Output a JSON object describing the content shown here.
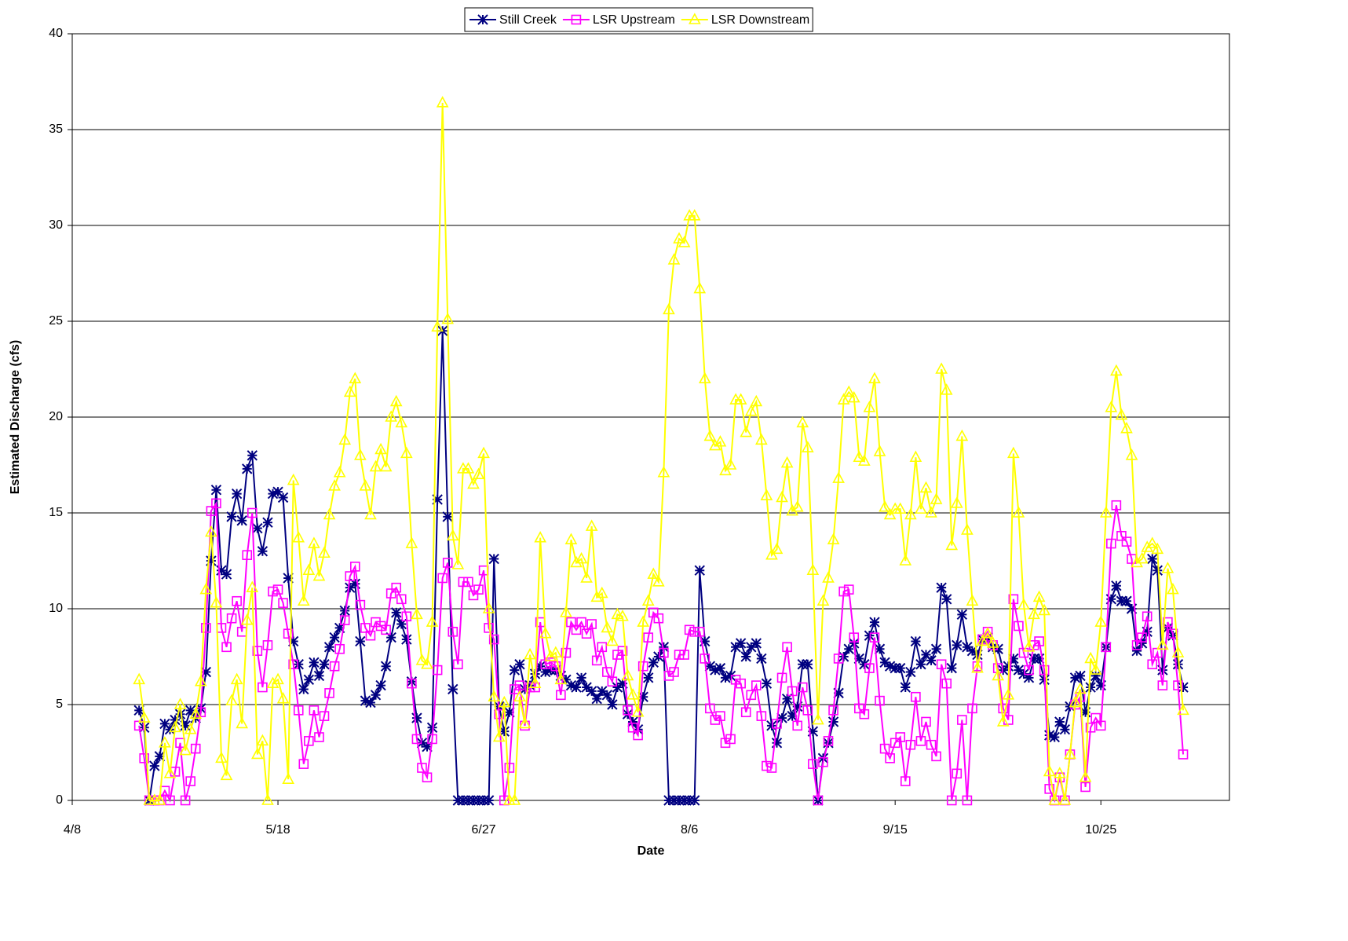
{
  "chart_data": {
    "type": "line",
    "x_label": "Date",
    "y_label": "Estimated Discharge (cfs)",
    "xlim": [
      "4/8",
      "11/19"
    ],
    "xticks": [
      "4/8",
      "5/18",
      "6/27",
      "8/6",
      "9/15",
      "10/25"
    ],
    "ylim": [
      0,
      40
    ],
    "yticks": [
      0,
      5,
      10,
      15,
      20,
      25,
      30,
      35,
      40
    ],
    "grid": true,
    "legend": "top",
    "x": [
      "4/21",
      "4/22",
      "4/23",
      "4/24",
      "4/25",
      "4/26",
      "4/27",
      "4/28",
      "4/29",
      "4/30",
      "5/1",
      "5/2",
      "5/3",
      "5/4",
      "5/5",
      "5/6",
      "5/7",
      "5/8",
      "5/9",
      "5/10",
      "5/11",
      "5/12",
      "5/13",
      "5/14",
      "5/15",
      "5/16",
      "5/17",
      "5/18",
      "5/19",
      "5/20",
      "5/21",
      "5/22",
      "5/23",
      "5/24",
      "5/25",
      "5/26",
      "5/27",
      "5/28",
      "5/29",
      "5/30",
      "5/31",
      "6/1",
      "6/2",
      "6/3",
      "6/4",
      "6/5",
      "6/6",
      "6/7",
      "6/8",
      "6/9",
      "6/10",
      "6/11",
      "6/12",
      "6/13",
      "6/14",
      "6/15",
      "6/16",
      "6/17",
      "6/18",
      "6/19",
      "6/20",
      "6/21",
      "6/22",
      "6/23",
      "6/24",
      "6/25",
      "6/26",
      "6/27",
      "6/28",
      "6/29",
      "6/30",
      "7/1",
      "7/2",
      "7/3",
      "7/4",
      "7/5",
      "7/6",
      "7/7",
      "7/8",
      "7/9",
      "7/10",
      "7/11",
      "7/12",
      "7/13",
      "7/14",
      "7/15",
      "7/16",
      "7/17",
      "7/18",
      "7/19",
      "7/20",
      "7/21",
      "7/22",
      "7/23",
      "7/24",
      "7/25",
      "7/26",
      "7/27",
      "7/28",
      "7/29",
      "7/30",
      "7/31",
      "8/1",
      "8/2",
      "8/3",
      "8/4",
      "8/5",
      "8/6",
      "8/7",
      "8/8",
      "8/9",
      "8/10",
      "8/11",
      "8/12",
      "8/13",
      "8/14",
      "8/15",
      "8/16",
      "8/17",
      "8/18",
      "8/19",
      "8/20",
      "8/21",
      "8/22",
      "8/23",
      "8/24",
      "8/25",
      "8/26",
      "8/27",
      "8/28",
      "8/29",
      "8/30",
      "8/31",
      "9/1",
      "9/2",
      "9/3",
      "9/4",
      "9/5",
      "9/6",
      "9/7",
      "9/8",
      "9/9",
      "9/10",
      "9/11",
      "9/12",
      "9/13",
      "9/14",
      "9/15",
      "9/16",
      "9/17",
      "9/18",
      "9/19",
      "9/20",
      "9/21",
      "9/22",
      "9/23",
      "9/24",
      "9/25",
      "9/26",
      "9/27",
      "9/28",
      "9/29",
      "9/30",
      "10/1",
      "10/2",
      "10/3",
      "10/4",
      "10/5",
      "10/6",
      "10/7",
      "10/8",
      "10/9",
      "10/10",
      "10/11",
      "10/12",
      "10/13",
      "10/14",
      "10/15",
      "10/16",
      "10/17",
      "10/18",
      "10/19",
      "10/20",
      "10/21",
      "10/22",
      "10/23",
      "10/24",
      "10/25",
      "10/26",
      "10/27",
      "10/28",
      "10/29",
      "10/30",
      "10/31",
      "11/1",
      "11/2",
      "11/3",
      "11/4",
      "11/5",
      "11/6",
      "11/7",
      "11/8",
      "11/9",
      "11/10"
    ],
    "series": [
      {
        "name": "Still Creek",
        "color": "#000080",
        "marker": "asterisk",
        "values": [
          4.7,
          3.8,
          0,
          1.8,
          2.3,
          4.0,
          3.7,
          4.2,
          4.5,
          3.9,
          4.7,
          4.3,
          4.8,
          6.7,
          12.5,
          16.2,
          12.0,
          11.8,
          14.8,
          16.0,
          14.6,
          17.3,
          18.0,
          14.2,
          13.0,
          14.5,
          16.0,
          16.1,
          15.8,
          11.6,
          8.3,
          7.1,
          5.8,
          6.3,
          7.2,
          6.5,
          7.1,
          8.0,
          8.5,
          9.0,
          9.9,
          11.1,
          11.3,
          8.3,
          5.2,
          5.1,
          5.5,
          6.0,
          7.0,
          8.5,
          9.8,
          9.2,
          8.4,
          6.2,
          4.3,
          3.0,
          2.8,
          3.8,
          15.7,
          24.5,
          14.8,
          5.8,
          0,
          0,
          0,
          0,
          0,
          0,
          0,
          12.6,
          4.9,
          3.6,
          4.6,
          6.8,
          7.1,
          5.8,
          6.0,
          6.6,
          7.0,
          6.7,
          6.8,
          6.8,
          6.5,
          6.3,
          6.0,
          5.9,
          6.4,
          5.9,
          5.7,
          5.3,
          5.7,
          5.5,
          5.0,
          5.9,
          6.1,
          4.5,
          4.1,
          3.7,
          5.4,
          6.4,
          7.2,
          7.5,
          8.0,
          0,
          0,
          0,
          0,
          0,
          0,
          12.0,
          8.3,
          7.0,
          6.8,
          6.9,
          6.4,
          6.5,
          8.0,
          8.2,
          7.5,
          8.0,
          8.2,
          7.4,
          6.1,
          3.9,
          3.0,
          4.3,
          5.3,
          4.4,
          4.9,
          7.1,
          7.1,
          3.6,
          0,
          2.2,
          3.0,
          4.1,
          5.6,
          7.5,
          7.9,
          8.2,
          7.4,
          7.1,
          8.6,
          9.3,
          7.9,
          7.2,
          7.0,
          6.9,
          6.9,
          5.9,
          6.7,
          8.3,
          7.1,
          7.6,
          7.3,
          7.9,
          11.1,
          10.5,
          6.9,
          8.1,
          9.7,
          8.0,
          7.8,
          7.6,
          8.4,
          8.5,
          8.0,
          7.9,
          6.8,
          7.0,
          7.4,
          6.8,
          6.6,
          6.4,
          7.4,
          7.4,
          6.3,
          3.4,
          3.3,
          4.1,
          3.7,
          4.9,
          6.4,
          6.5,
          4.6,
          5.9,
          6.5,
          6.0,
          8.0,
          10.5,
          11.2,
          10.4,
          10.4,
          10.0,
          7.8,
          8.2,
          8.8,
          12.6,
          12.0,
          6.8,
          9.0,
          8.6,
          7.1,
          5.9
        ]
      },
      {
        "name": "LSR Upstream",
        "color": "#ff00ff",
        "marker": "square",
        "values": [
          3.9,
          2.2,
          0,
          0,
          0,
          0.5,
          0,
          1.5,
          3.0,
          0,
          1.0,
          2.7,
          4.6,
          9.0,
          15.1,
          15.5,
          9.0,
          8.0,
          9.5,
          10.4,
          8.8,
          12.8,
          15.0,
          7.8,
          5.9,
          8.1,
          10.9,
          11.0,
          10.3,
          8.7,
          7.1,
          4.7,
          1.9,
          3.1,
          4.7,
          3.3,
          4.4,
          5.6,
          7.0,
          7.9,
          9.4,
          11.7,
          12.2,
          10.2,
          9.0,
          8.6,
          9.3,
          9.1,
          8.9,
          10.8,
          11.1,
          10.5,
          9.6,
          6.1,
          3.2,
          1.7,
          1.2,
          3.2,
          6.8,
          11.6,
          12.4,
          8.8,
          7.1,
          11.4,
          11.4,
          10.7,
          11.0,
          12.0,
          9.0,
          8.4,
          4.5,
          0,
          1.7,
          5.8,
          6.0,
          3.9,
          5.9,
          5.9,
          9.3,
          7.1,
          7.2,
          7.0,
          5.5,
          7.7,
          9.3,
          8.9,
          9.3,
          8.7,
          9.2,
          7.3,
          8.0,
          6.7,
          6.2,
          7.6,
          7.8,
          4.7,
          3.8,
          3.4,
          7.0,
          8.5,
          9.8,
          9.5,
          7.7,
          6.5,
          6.7,
          7.6,
          7.6,
          8.9,
          8.8,
          8.8,
          7.4,
          4.8,
          4.2,
          4.4,
          3.0,
          3.2,
          6.3,
          6.1,
          4.6,
          5.5,
          6.0,
          4.4,
          1.8,
          1.7,
          4.0,
          6.4,
          8.0,
          5.7,
          3.9,
          5.9,
          4.7,
          1.9,
          0,
          2.0,
          3.1,
          4.7,
          7.4,
          10.9,
          11.0,
          8.5,
          4.8,
          4.5,
          6.9,
          8.5,
          5.2,
          2.7,
          2.2,
          3.0,
          3.3,
          1.0,
          2.9,
          5.4,
          3.1,
          4.1,
          2.9,
          2.3,
          7.1,
          6.1,
          0,
          1.4,
          4.2,
          0,
          4.8,
          7.0,
          8.4,
          8.8,
          8.1,
          6.9,
          4.8,
          4.2,
          10.5,
          9.1,
          7.7,
          6.8,
          8.1,
          8.3,
          6.8,
          0.6,
          0,
          1.2,
          0,
          2.4,
          5.0,
          5.4,
          0.7,
          3.8,
          4.3,
          3.9,
          8.0,
          13.4,
          15.4,
          13.8,
          13.5,
          12.6,
          8.1,
          8.5,
          9.6,
          7.1,
          7.7,
          6.0,
          9.3,
          8.7,
          6.0,
          2.4
        ]
      },
      {
        "name": "LSR Downstream",
        "color": "#ffff00",
        "marker": "triangle",
        "values": [
          6.3,
          4.3,
          0,
          0,
          0,
          3.0,
          1.4,
          3.8,
          5.0,
          2.6,
          3.7,
          4.5,
          6.2,
          11.0,
          14.0,
          10.3,
          2.2,
          1.3,
          5.2,
          6.3,
          4.0,
          9.4,
          11.1,
          2.4,
          3.1,
          0,
          6.1,
          6.3,
          5.3,
          1.1,
          16.7,
          13.7,
          10.4,
          12.0,
          13.4,
          11.7,
          12.9,
          14.9,
          16.4,
          17.1,
          18.8,
          21.3,
          22.0,
          18.0,
          16.4,
          14.9,
          17.4,
          18.3,
          17.4,
          20.0,
          20.8,
          19.7,
          18.1,
          13.4,
          9.7,
          7.3,
          7.1,
          9.3,
          24.7,
          36.4,
          25.1,
          13.8,
          12.3,
          17.3,
          17.3,
          16.5,
          17.0,
          18.1,
          10.0,
          5.4,
          3.3,
          5.1,
          0,
          0,
          5.4,
          4.0,
          7.6,
          6.1,
          13.7,
          8.7,
          7.5,
          7.7,
          6.3,
          9.8,
          13.6,
          12.4,
          12.6,
          11.6,
          14.3,
          10.6,
          10.8,
          9.0,
          8.3,
          9.7,
          9.6,
          6.5,
          5.5,
          4.6,
          9.3,
          10.4,
          11.8,
          11.4,
          17.1,
          25.6,
          28.2,
          29.3,
          29.1,
          30.5,
          30.5,
          26.7,
          22.0,
          19.0,
          18.5,
          18.7,
          17.2,
          17.5,
          20.9,
          20.9,
          19.2,
          20.3,
          20.8,
          18.8,
          15.9,
          12.8,
          13.1,
          15.8,
          17.6,
          15.1,
          15.3,
          19.7,
          18.4,
          12.0,
          4.2,
          10.4,
          11.6,
          13.6,
          16.8,
          20.9,
          21.3,
          21.0,
          17.9,
          17.7,
          20.5,
          22.0,
          18.2,
          15.3,
          14.9,
          15.2,
          15.2,
          12.5,
          14.9,
          17.9,
          15.2,
          16.3,
          15.0,
          15.7,
          22.5,
          21.4,
          13.3,
          15.5,
          19.0,
          14.1,
          10.4,
          6.9,
          8.3,
          8.7,
          8.2,
          6.5,
          4.1,
          5.5,
          18.1,
          15.0,
          10.2,
          8.0,
          9.7,
          10.6,
          9.9,
          1.5,
          0,
          1.4,
          0,
          2.4,
          5.1,
          5.8,
          1.2,
          7.4,
          6.8,
          9.3,
          15.0,
          20.5,
          22.4,
          20.1,
          19.4,
          18.0,
          12.4,
          12.6,
          13.2,
          13.4,
          13.1,
          8.1,
          12.1,
          11.0,
          7.7,
          4.7
        ]
      }
    ]
  }
}
